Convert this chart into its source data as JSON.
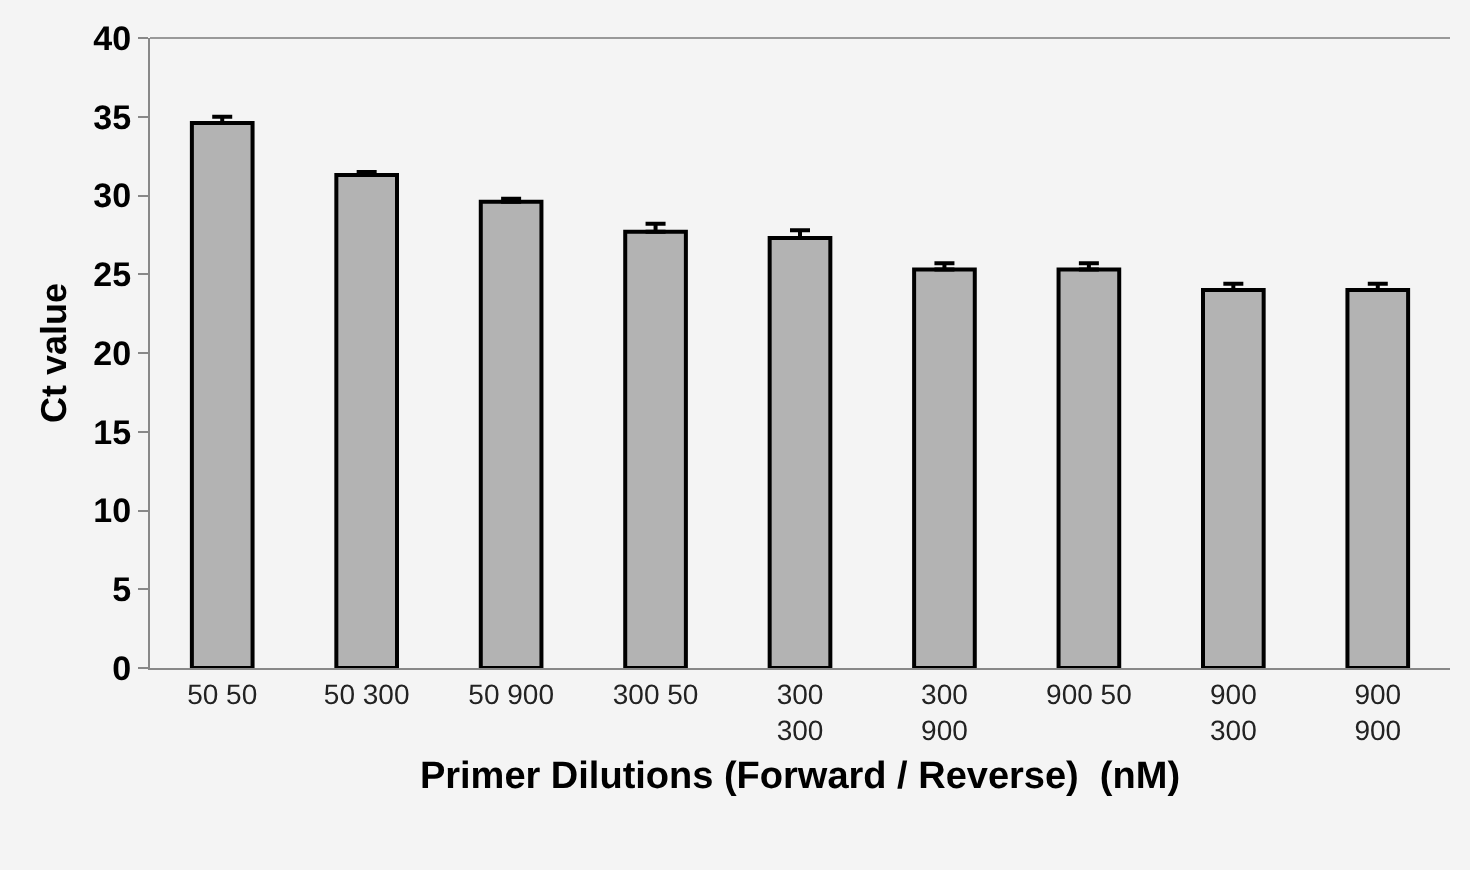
{
  "chart_data": {
    "type": "bar",
    "xlabel": "Primer Dilutions (Forward / Reverse)  (nM)",
    "ylabel": "Ct value",
    "categories": [
      "50 50",
      "50 300",
      "50 900",
      "300 50",
      "300\n300",
      "300\n900",
      "900 50",
      "900\n300",
      "900\n900"
    ],
    "values": [
      34.6,
      31.3,
      29.6,
      27.7,
      27.3,
      25.3,
      25.3,
      24.0,
      24.0
    ],
    "errors": [
      [
        34.6,
        35.0
      ],
      [
        31.3,
        31.5
      ],
      [
        29.6,
        29.8
      ],
      [
        27.7,
        28.2
      ],
      [
        27.3,
        27.8
      ],
      [
        25.3,
        25.7
      ],
      [
        25.3,
        25.7
      ],
      [
        24.0,
        24.4
      ],
      [
        24.0,
        24.4
      ]
    ],
    "color": "#b3b3b3",
    "ylim": [
      0,
      40
    ],
    "yticks": [
      0,
      5,
      10,
      15,
      20,
      25,
      30,
      35,
      40
    ],
    "grid": false
  }
}
